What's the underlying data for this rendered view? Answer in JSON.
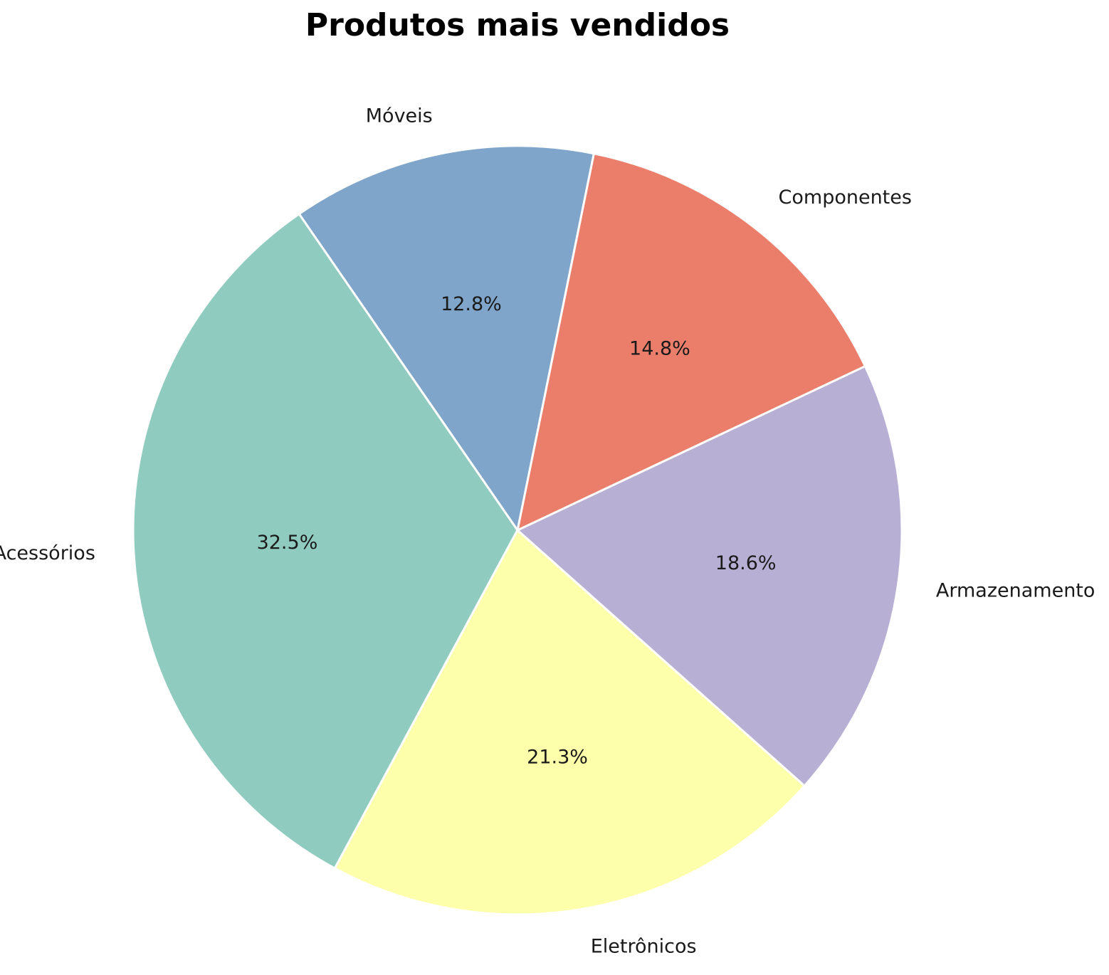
{
  "chart_data": {
    "type": "pie",
    "title": "Produtos mais vendidos",
    "slices": [
      {
        "label": "Armazenamento",
        "value": 18.6,
        "pct_label": "18.6%",
        "color": "#b8b0d4"
      },
      {
        "label": "Componentes",
        "value": 14.8,
        "pct_label": "14.8%",
        "color": "#eb7e6b"
      },
      {
        "label": "Móveis",
        "value": 12.8,
        "pct_label": "12.8%",
        "color": "#80a5ca"
      },
      {
        "label": "Acessórios",
        "value": 32.5,
        "pct_label": "32.5%",
        "color": "#90cbc0"
      },
      {
        "label": "Eletrônicos",
        "value": 21.3,
        "pct_label": "21.3%",
        "color": "#feffab"
      }
    ],
    "slice_edge_color": "#ffffff",
    "legend": "none"
  }
}
